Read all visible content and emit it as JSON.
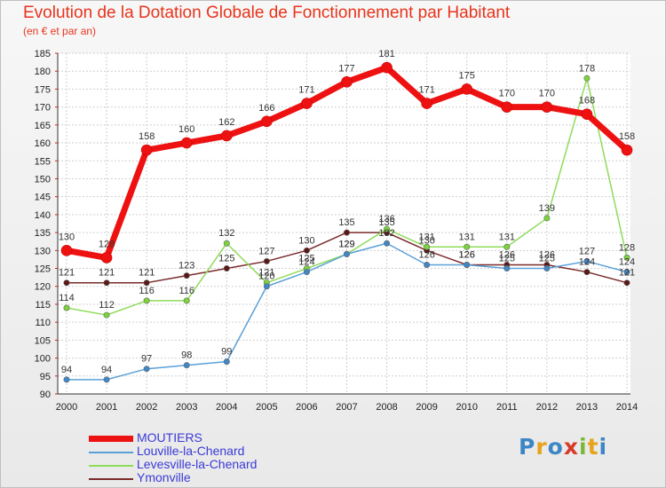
{
  "title": "Evolution de la Dotation Globale de Fonctionnement par Habitant",
  "subtitle": "(en € et par an)",
  "brand": "Proxiti",
  "colors": {
    "title": "#e8341c",
    "grid": "#cfcfcf",
    "legend_text": "#3a3ad8"
  },
  "chart_data": {
    "type": "line",
    "title": "Evolution de la Dotation Globale de Fonctionnement par Habitant",
    "ylabel": "(en € et par an)",
    "xlabel": "",
    "x": [
      2000,
      2001,
      2002,
      2003,
      2004,
      2005,
      2006,
      2007,
      2008,
      2009,
      2010,
      2011,
      2012,
      2013,
      2014
    ],
    "ylim": [
      90,
      185
    ],
    "yticks": [
      90,
      95,
      100,
      105,
      110,
      115,
      120,
      125,
      130,
      135,
      140,
      145,
      150,
      155,
      160,
      165,
      170,
      175,
      180,
      185
    ],
    "grid": true,
    "legend_position": "bottom-left",
    "series": [
      {
        "name": "MOUTIERS",
        "color": "#ee1111",
        "values": [
          130,
          128,
          158,
          160,
          162,
          166,
          171,
          177,
          181,
          171,
          175,
          170,
          170,
          168,
          158
        ]
      },
      {
        "name": "Louville-la-Chenard",
        "color": "#5aa0d8",
        "values": [
          94,
          94,
          97,
          98,
          99,
          120,
          124,
          129,
          132,
          126,
          126,
          125,
          125,
          127,
          124
        ]
      },
      {
        "name": "Levesville-la-Chenard",
        "color": "#8fdc5a",
        "values": [
          114,
          112,
          116,
          116,
          132,
          121,
          125,
          129,
          136,
          131,
          131,
          131,
          139,
          178,
          128
        ]
      },
      {
        "name": "Ymonville",
        "color": "#7a2a2a",
        "values": [
          121,
          121,
          121,
          123,
          125,
          127,
          130,
          135,
          135,
          130,
          126,
          126,
          126,
          124,
          121
        ]
      }
    ]
  }
}
